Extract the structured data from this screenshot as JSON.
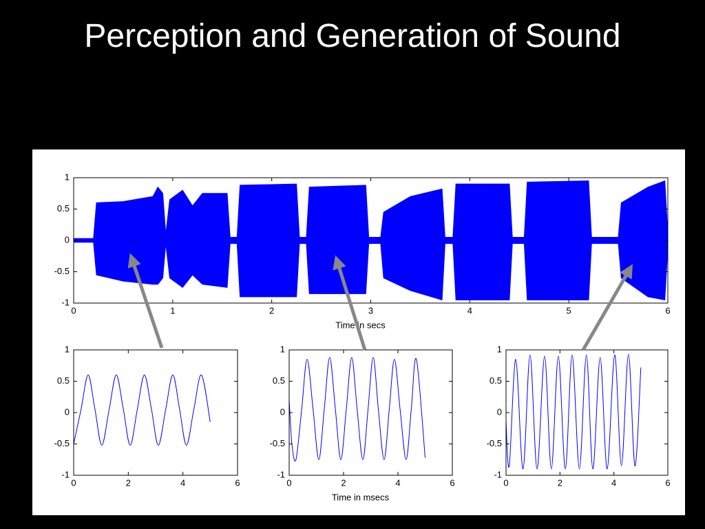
{
  "title": "Perception and Generation of Sound",
  "chart_data": [
    {
      "type": "area",
      "xlabel": "Time in secs",
      "color": "#0000ff",
      "x": [
        0,
        0.2,
        0.23,
        0.5,
        0.8,
        0.85,
        0.9,
        0.93,
        0.97,
        1.1,
        1.2,
        1.3,
        1.55,
        1.58,
        1.65,
        1.68,
        2.25,
        2.28,
        2.35,
        2.38,
        2.95,
        2.98,
        3.1,
        3.13,
        3.4,
        3.72,
        3.75,
        3.83,
        3.86,
        4.4,
        4.43,
        4.55,
        4.58,
        5.2,
        5.23,
        5.5,
        5.53,
        5.8,
        5.97,
        6.0
      ],
      "series": [
        {
          "color": "#0000ff",
          "values": [
            0.03,
            0.03,
            0.6,
            0.62,
            0.7,
            0.85,
            0.75,
            0.1,
            0.65,
            0.8,
            0.55,
            0.75,
            0.75,
            0.05,
            0.05,
            0.88,
            0.9,
            0.05,
            0.05,
            0.85,
            0.88,
            0.05,
            0.05,
            0.45,
            0.7,
            0.82,
            0.05,
            0.05,
            0.9,
            0.9,
            0.05,
            0.05,
            0.93,
            0.95,
            0.05,
            0.05,
            0.6,
            0.85,
            0.95,
            0.1
          ]
        },
        {
          "color": "#0000ff",
          "values": [
            -0.03,
            -0.03,
            -0.55,
            -0.65,
            -0.7,
            -0.7,
            -0.6,
            -0.05,
            -0.6,
            -0.75,
            -0.55,
            -0.7,
            -0.75,
            -0.05,
            -0.05,
            -0.9,
            -0.9,
            -0.05,
            -0.05,
            -0.85,
            -0.85,
            -0.05,
            -0.05,
            -0.6,
            -0.8,
            -0.95,
            -0.05,
            -0.05,
            -0.95,
            -0.95,
            -0.05,
            -0.05,
            -0.95,
            -0.95,
            -0.05,
            -0.05,
            -0.6,
            -0.9,
            -0.95,
            -0.1
          ]
        }
      ],
      "xlim": [
        0,
        6
      ],
      "xticks": [
        0,
        1,
        2,
        3,
        4,
        5,
        6
      ],
      "ylim": [
        -1,
        1
      ],
      "yticks": [
        -1,
        -0.5,
        0,
        0.5,
        1
      ]
    },
    {
      "type": "line",
      "color": "#0000ff",
      "x": [
        0,
        0.27,
        0.53,
        0.78,
        1.03,
        1.3,
        1.56,
        1.82,
        2.07,
        2.33,
        2.59,
        2.85,
        3.1,
        3.37,
        3.63,
        3.88,
        4.13,
        4.4,
        4.68,
        5.0
      ],
      "values": [
        -0.5,
        0.05,
        0.6,
        0.05,
        -0.52,
        0.05,
        0.6,
        0.05,
        -0.52,
        0.05,
        0.6,
        0.05,
        -0.52,
        0.05,
        0.6,
        0.05,
        -0.52,
        0.05,
        0.6,
        -0.15
      ],
      "xlim": [
        0,
        6
      ],
      "xticks": [
        0,
        2,
        4,
        6
      ],
      "ylim": [
        -1,
        1
      ],
      "yticks": [
        -1,
        -0.5,
        0,
        0.5,
        1
      ]
    },
    {
      "type": "line",
      "xlabel": "Time in msecs",
      "color": "#0000ff",
      "x": [
        0,
        0.1,
        0.25,
        0.46,
        0.66,
        0.88,
        1.09,
        1.29,
        1.49,
        1.7,
        1.9,
        2.1,
        2.3,
        2.5,
        2.71,
        2.9,
        3.09,
        3.28,
        3.49,
        3.68,
        3.87,
        4.08,
        4.3,
        4.49,
        4.68,
        5.0
      ],
      "values": [
        0.2,
        -0.5,
        -0.75,
        0.05,
        0.85,
        0.05,
        -0.75,
        0.05,
        0.88,
        0.05,
        -0.75,
        0.05,
        0.88,
        0.05,
        -0.75,
        0.05,
        0.88,
        0.05,
        -0.75,
        0.05,
        0.85,
        0.05,
        -0.75,
        0.05,
        0.85,
        -0.72
      ],
      "xlim": [
        0,
        6
      ],
      "xticks": [
        0,
        2,
        4,
        6
      ],
      "ylim": [
        -1,
        1
      ],
      "yticks": [
        -1,
        -0.5,
        0,
        0.5,
        1
      ]
    },
    {
      "type": "line",
      "color": "#0000ff",
      "x": [
        0,
        0.12,
        0.36,
        0.63,
        0.89,
        1.15,
        1.43,
        1.68,
        1.94,
        2.2,
        2.45,
        2.72,
        2.98,
        3.22,
        3.49,
        3.75,
        4.03,
        4.28,
        4.54,
        4.78,
        5.0
      ],
      "values": [
        -0.15,
        -0.85,
        0.85,
        -0.9,
        0.92,
        -0.9,
        0.9,
        -0.9,
        0.9,
        -0.9,
        0.92,
        -0.9,
        0.92,
        -0.9,
        0.88,
        -0.9,
        0.92,
        -0.85,
        0.93,
        -0.85,
        0.72
      ],
      "xlim": [
        0,
        6
      ],
      "xticks": [
        0,
        2,
        4,
        6
      ],
      "ylim": [
        -1,
        1
      ],
      "yticks": [
        -1,
        -0.5,
        0,
        0.5,
        1
      ]
    }
  ]
}
